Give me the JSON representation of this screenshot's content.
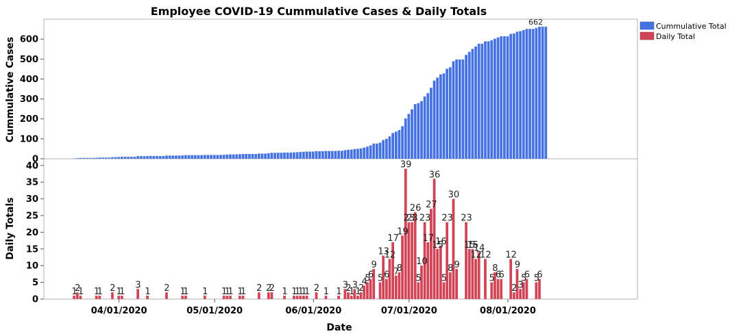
{
  "chart_data": {
    "type": "bar",
    "title": "Employee COVID-19 Cummulative Cases & Daily Totals",
    "xlabel": "Date",
    "x_start": "2020-03-13",
    "x_end": "2020-08-13",
    "x_ticks": [
      "04/01/2020",
      "05/01/2020",
      "06/01/2020",
      "07/01/2020",
      "08/01/2020"
    ],
    "legend": [
      {
        "name": "Cummulative Total",
        "color": "#4472E0"
      },
      {
        "name": "Daily Total",
        "color": "#D04455"
      }
    ],
    "panels": [
      {
        "name": "Cummulative Total",
        "ylabel": "Cummulative Cases",
        "ylim": [
          0,
          700
        ],
        "yticks": [
          0,
          100,
          200,
          300,
          400,
          500,
          600
        ],
        "series_ref": 0,
        "annotation": "662"
      },
      {
        "name": "Daily Total",
        "ylabel": "Daily Totals",
        "ylim": [
          0,
          42
        ],
        "yticks": [
          0,
          5,
          10,
          15,
          20,
          25,
          30,
          35,
          40
        ],
        "series_ref": 1
      }
    ],
    "series": [
      {
        "name": "Cummulative Total",
        "color": "#4472E0",
        "note": "derived as running sum of daily totals",
        "values": []
      },
      {
        "name": "Daily Total",
        "color": "#D04455",
        "points": [
          [
            "2020-03-18",
            1
          ],
          [
            "2020-03-19",
            2
          ],
          [
            "2020-03-20",
            1
          ],
          [
            "2020-03-25",
            1
          ],
          [
            "2020-03-26",
            1
          ],
          [
            "2020-03-30",
            2
          ],
          [
            "2020-04-01",
            1
          ],
          [
            "2020-04-02",
            1
          ],
          [
            "2020-04-07",
            3
          ],
          [
            "2020-04-10",
            1
          ],
          [
            "2020-04-16",
            2
          ],
          [
            "2020-04-21",
            1
          ],
          [
            "2020-04-22",
            1
          ],
          [
            "2020-04-28",
            1
          ],
          [
            "2020-05-04",
            1
          ],
          [
            "2020-05-05",
            1
          ],
          [
            "2020-05-06",
            1
          ],
          [
            "2020-05-09",
            1
          ],
          [
            "2020-05-10",
            1
          ],
          [
            "2020-05-15",
            2
          ],
          [
            "2020-05-18",
            2
          ],
          [
            "2020-05-19",
            2
          ],
          [
            "2020-05-23",
            1
          ],
          [
            "2020-05-26",
            1
          ],
          [
            "2020-05-27",
            1
          ],
          [
            "2020-05-28",
            1
          ],
          [
            "2020-05-29",
            1
          ],
          [
            "2020-05-30",
            1
          ],
          [
            "2020-06-02",
            2
          ],
          [
            "2020-06-05",
            1
          ],
          [
            "2020-06-09",
            1
          ],
          [
            "2020-06-11",
            3
          ],
          [
            "2020-06-12",
            2
          ],
          [
            "2020-06-13",
            1
          ],
          [
            "2020-06-14",
            3
          ],
          [
            "2020-06-15",
            1
          ],
          [
            "2020-06-16",
            2
          ],
          [
            "2020-06-17",
            4
          ],
          [
            "2020-06-18",
            5
          ],
          [
            "2020-06-19",
            6
          ],
          [
            "2020-06-20",
            9
          ],
          [
            "2020-06-22",
            5
          ],
          [
            "2020-06-23",
            13
          ],
          [
            "2020-06-24",
            6
          ],
          [
            "2020-06-25",
            12
          ],
          [
            "2020-06-26",
            17
          ],
          [
            "2020-06-27",
            7
          ],
          [
            "2020-06-28",
            8
          ],
          [
            "2020-06-29",
            19
          ],
          [
            "2020-06-30",
            39
          ],
          [
            "2020-07-01",
            23
          ],
          [
            "2020-07-02",
            23
          ],
          [
            "2020-07-03",
            26
          ],
          [
            "2020-07-04",
            5
          ],
          [
            "2020-07-05",
            10
          ],
          [
            "2020-07-06",
            23
          ],
          [
            "2020-07-07",
            17
          ],
          [
            "2020-07-08",
            27
          ],
          [
            "2020-07-09",
            36
          ],
          [
            "2020-07-10",
            15
          ],
          [
            "2020-07-11",
            16
          ],
          [
            "2020-07-12",
            5
          ],
          [
            "2020-07-13",
            23
          ],
          [
            "2020-07-14",
            8
          ],
          [
            "2020-07-15",
            30
          ],
          [
            "2020-07-16",
            9
          ],
          [
            "2020-07-19",
            23
          ],
          [
            "2020-07-20",
            15
          ],
          [
            "2020-07-21",
            15
          ],
          [
            "2020-07-22",
            12
          ],
          [
            "2020-07-23",
            14
          ],
          [
            "2020-07-25",
            12
          ],
          [
            "2020-07-27",
            5
          ],
          [
            "2020-07-28",
            8
          ],
          [
            "2020-07-29",
            6
          ],
          [
            "2020-07-30",
            6
          ],
          [
            "2020-08-02",
            12
          ],
          [
            "2020-08-03",
            2
          ],
          [
            "2020-08-04",
            9
          ],
          [
            "2020-08-05",
            3
          ],
          [
            "2020-08-06",
            5
          ],
          [
            "2020-08-07",
            6
          ],
          [
            "2020-08-10",
            5
          ],
          [
            "2020-08-11",
            6
          ]
        ]
      }
    ]
  }
}
